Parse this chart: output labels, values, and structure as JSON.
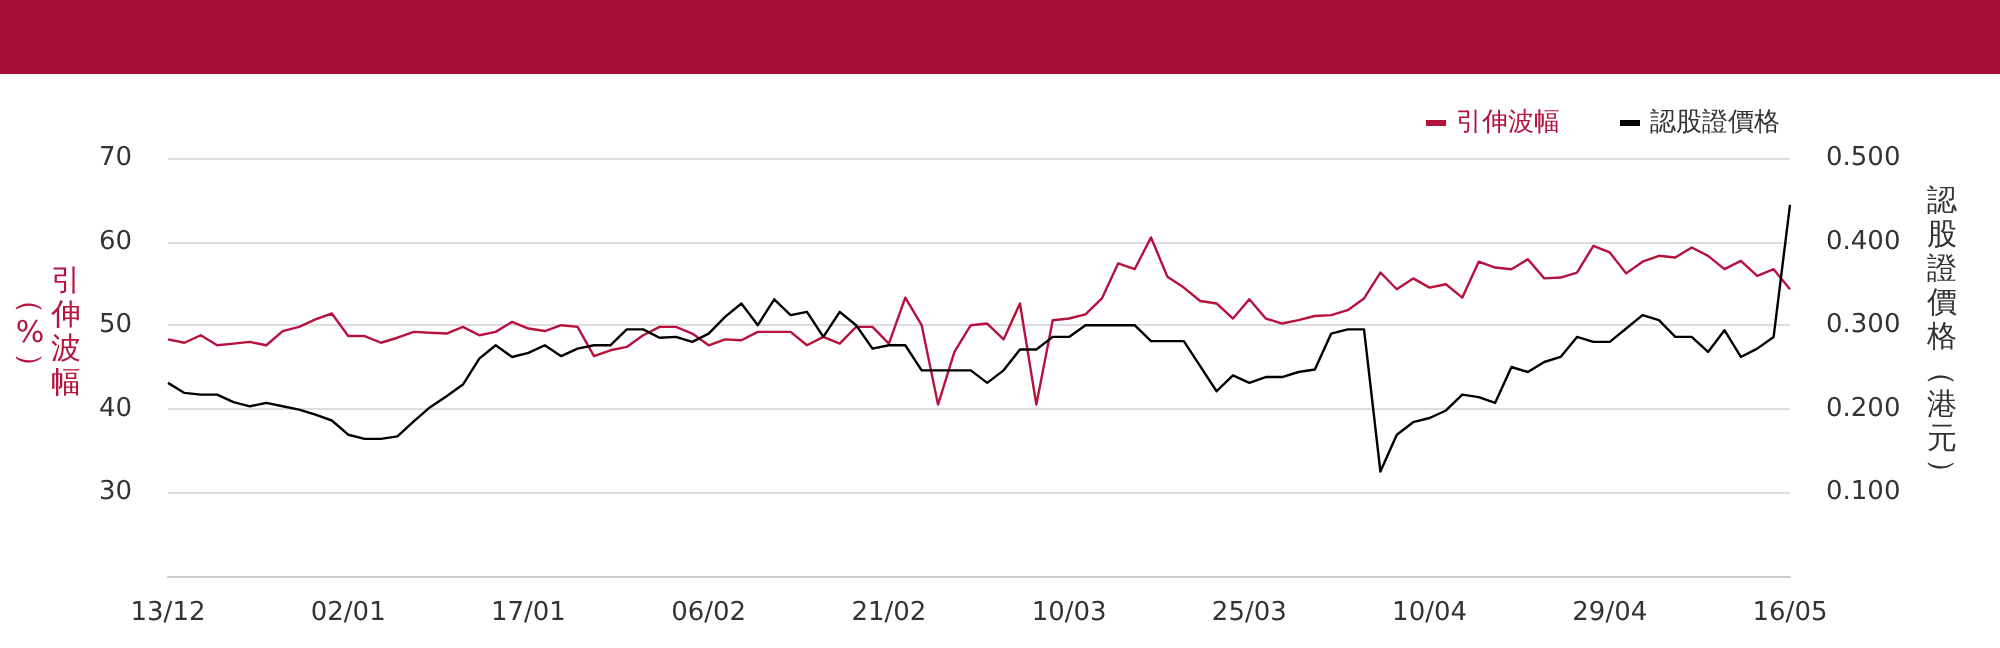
{
  "chart_data": {
    "type": "line",
    "categories": [
      "13/12",
      null,
      null,
      null,
      null,
      null,
      null,
      null,
      null,
      null,
      null,
      "02/01",
      null,
      null,
      null,
      null,
      null,
      null,
      null,
      null,
      null,
      null,
      "17/01",
      null,
      null,
      null,
      null,
      null,
      null,
      null,
      null,
      null,
      null,
      "06/02",
      null,
      null,
      null,
      null,
      null,
      null,
      null,
      null,
      null,
      null,
      "21/02",
      null,
      null,
      null,
      null,
      null,
      null,
      null,
      null,
      null,
      null,
      "10/03",
      null,
      null,
      null,
      null,
      null,
      null,
      null,
      null,
      null,
      null,
      "25/03",
      null,
      null,
      null,
      null,
      null,
      null,
      null,
      null,
      null,
      null,
      "10/04",
      null,
      null,
      null,
      null,
      null,
      null,
      null,
      null,
      null,
      null,
      "29/04",
      null,
      null,
      null,
      null,
      null,
      null,
      null,
      null,
      null,
      null,
      "16/05"
    ],
    "ylabel": "引伸波幅（%）",
    "y2label": "認股證價格（港元）",
    "series": [
      {
        "name": "引伸波幅",
        "color": "#b5123e",
        "values": [
          48.3,
          47.9,
          48.8,
          47.6,
          47.8,
          48.0,
          47.6,
          49.3,
          49.8,
          50.7,
          51.4,
          48.7,
          48.7,
          47.9,
          48.5,
          49.2,
          49.1,
          49.0,
          49.8,
          48.8,
          49.2,
          50.4,
          49.6,
          49.3,
          50.0,
          49.8,
          46.3,
          47.0,
          47.4,
          48.8,
          49.8,
          49.8,
          49.0,
          47.6,
          48.3,
          48.2,
          49.2,
          49.2,
          49.2,
          47.6,
          48.6,
          47.8,
          49.8,
          49.8,
          47.8,
          53.3,
          50.0,
          40.5,
          46.8,
          50.0,
          50.2,
          48.3,
          52.6,
          40.5,
          50.6,
          50.8,
          51.3,
          53.2,
          57.4,
          56.7,
          60.5,
          55.8,
          54.5,
          52.9,
          52.6,
          50.8,
          53.1,
          50.8,
          50.2,
          50.6,
          51.1,
          51.2,
          51.8,
          53.2,
          56.3,
          54.3,
          55.6,
          54.5,
          54.9,
          53.3,
          57.6,
          56.9,
          56.7,
          57.9,
          55.6,
          55.7,
          56.3,
          59.5,
          58.7,
          56.2,
          57.6,
          58.3,
          58.1,
          59.3,
          58.3,
          56.7,
          57.7,
          55.9,
          56.7,
          54.3
        ]
      },
      {
        "name": "認股證價格",
        "color": "#000000",
        "axis": "y2",
        "values": [
          0.231,
          0.219,
          0.217,
          0.217,
          0.208,
          0.203,
          0.207,
          0.203,
          0.199,
          0.193,
          0.186,
          0.169,
          0.164,
          0.164,
          0.167,
          0.185,
          0.202,
          0.215,
          0.229,
          0.26,
          0.276,
          0.262,
          0.267,
          0.276,
          0.263,
          0.272,
          0.276,
          0.276,
          0.295,
          0.295,
          0.285,
          0.286,
          0.28,
          0.29,
          0.31,
          0.326,
          0.3,
          0.331,
          0.312,
          0.316,
          0.286,
          0.316,
          0.3,
          0.272,
          0.276,
          0.276,
          0.246,
          0.246,
          0.246,
          0.246,
          0.231,
          0.246,
          0.271,
          0.271,
          0.286,
          0.286,
          0.3,
          0.3,
          0.3,
          0.3,
          0.281,
          0.281,
          0.281,
          0.251,
          0.221,
          0.24,
          0.231,
          0.238,
          0.238,
          0.244,
          0.247,
          0.29,
          0.295,
          0.295,
          0.125,
          0.169,
          0.184,
          0.189,
          0.198,
          0.217,
          0.214,
          0.207,
          0.25,
          0.244,
          0.256,
          0.262,
          0.286,
          0.28,
          0.28,
          0.296,
          0.312,
          0.306,
          0.286,
          0.286,
          0.268,
          0.294,
          0.262,
          0.272,
          0.286,
          0.444
        ]
      }
    ],
    "ylim": [
      20,
      70
    ],
    "yticks": [
      30,
      40,
      50,
      60,
      70
    ],
    "y2lim": [
      0,
      0.5
    ],
    "y2ticks": [
      {
        "value": 0.1,
        "label": "0.100"
      },
      {
        "value": 0.2,
        "label": "0.200"
      },
      {
        "value": 0.3,
        "label": "0.300"
      },
      {
        "value": 0.4,
        "label": "0.400"
      },
      {
        "value": 0.5,
        "label": "0.500"
      }
    ],
    "grid": "y",
    "legend": "top right",
    "marker": "none",
    "line_style": "solid"
  }
}
